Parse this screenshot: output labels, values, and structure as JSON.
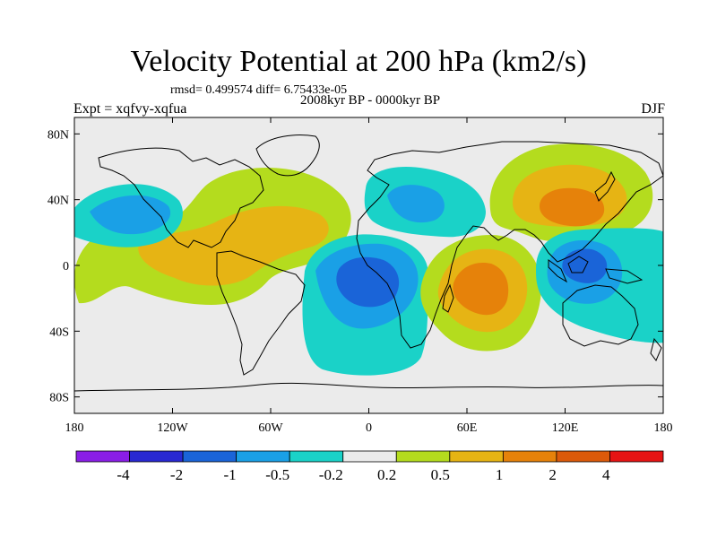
{
  "title": "Velocity Potential at 200 hPa (km2/s)",
  "stats_line": "rmsd= 0.499574 diff= 6.75433e-05",
  "period": "2008kyr BP - 0000kyr BP",
  "experiment": "Expt = xqfvy-xqfua",
  "season": "DJF",
  "map": {
    "lon_range": [
      -180,
      180
    ],
    "lat_range": [
      -90,
      90
    ],
    "background_color": "#ebebeb",
    "lon_ticks": [
      {
        "value": -180,
        "label": "180"
      },
      {
        "value": -120,
        "label": "120W"
      },
      {
        "value": -60,
        "label": "60W"
      },
      {
        "value": 0,
        "label": "0"
      },
      {
        "value": 60,
        "label": "60E"
      },
      {
        "value": 120,
        "label": "120E"
      },
      {
        "value": 180,
        "label": "180"
      }
    ],
    "lat_ticks": [
      {
        "value": 80,
        "label": "80N"
      },
      {
        "value": 40,
        "label": "40N"
      },
      {
        "value": 0,
        "label": "0"
      },
      {
        "value": -40,
        "label": "40S"
      },
      {
        "value": -80,
        "label": "80S"
      }
    ]
  },
  "colorbar": {
    "colors": [
      "#8a1ee6",
      "#2828d2",
      "#1a64d8",
      "#1aa0e6",
      "#1ad2c8",
      "#ebebeb",
      "#b4dc1e",
      "#e6b414",
      "#e6820a",
      "#dc5a0a",
      "#e61414"
    ],
    "labels": [
      "-4",
      "-2",
      "-1",
      "-0.5",
      "-0.2",
      "0.2",
      "0.5",
      "1",
      "2",
      "4"
    ]
  }
}
